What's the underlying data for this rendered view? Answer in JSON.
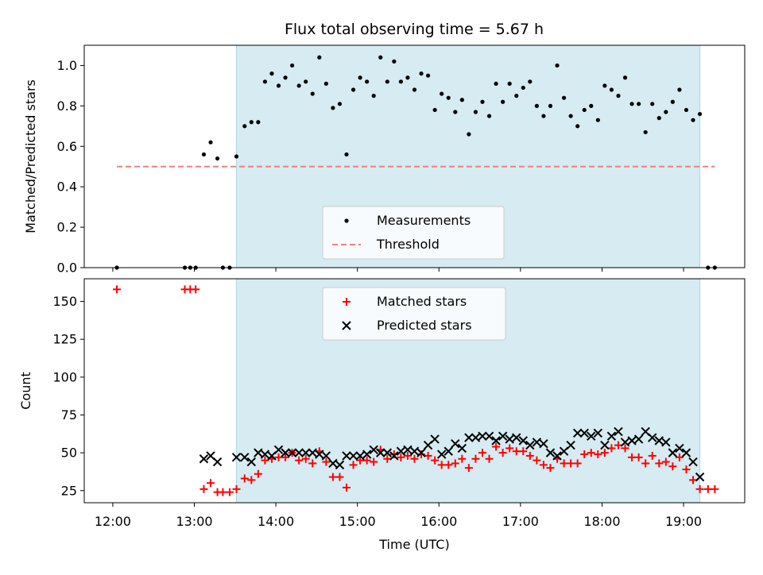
{
  "title": "Flux total observing time = 5.67 h",
  "colors": {
    "shade": "#add8e6",
    "threshold": "#f08080",
    "measurement": "#000000",
    "matched": "#ff0000",
    "predicted": "#000000"
  },
  "chart_data": [
    {
      "type": "scatter",
      "panel": "top",
      "ylabel": "Matched/Predicted stars",
      "ylim": [
        0,
        1.1
      ],
      "yticks": [
        0,
        0.2,
        0.4,
        0.6,
        0.8,
        1.0
      ],
      "ytick_labels": [
        "0.0",
        "0.2",
        "0.4",
        "0.6",
        "0.8",
        "1.0"
      ],
      "xlim": [
        "11:39",
        "19:45"
      ],
      "shaded_interval": [
        "13:31",
        "19:12"
      ],
      "legend": {
        "placement": "bottom-center",
        "entries": [
          "Measurements",
          "Threshold"
        ]
      },
      "threshold": {
        "name": "Threshold",
        "value": 0.5,
        "x_start": "12:03",
        "x_end": "19:23"
      },
      "series": [
        {
          "name": "Measurements",
          "marker": "dot",
          "points": [
            [
              "12:03",
              0.0
            ],
            [
              "12:53",
              0.0
            ],
            [
              "12:57",
              0.0
            ],
            [
              "13:01",
              0.0
            ],
            [
              "13:07",
              0.56
            ],
            [
              "13:12",
              0.62
            ],
            [
              "13:17",
              0.54
            ],
            [
              "13:21",
              0.0
            ],
            [
              "13:26",
              0.0
            ],
            [
              "13:31",
              0.55
            ],
            [
              "13:37",
              0.7
            ],
            [
              "13:42",
              0.72
            ],
            [
              "13:47",
              0.72
            ],
            [
              "13:52",
              0.92
            ],
            [
              "13:57",
              0.96
            ],
            [
              "14:02",
              0.9
            ],
            [
              "14:07",
              0.94
            ],
            [
              "14:12",
              1.0
            ],
            [
              "14:17",
              0.9
            ],
            [
              "14:22",
              0.92
            ],
            [
              "14:27",
              0.86
            ],
            [
              "14:32",
              1.04
            ],
            [
              "14:37",
              0.91
            ],
            [
              "14:42",
              0.79
            ],
            [
              "14:47",
              0.81
            ],
            [
              "14:52",
              0.56
            ],
            [
              "14:57",
              0.88
            ],
            [
              "15:02",
              0.94
            ],
            [
              "15:07",
              0.92
            ],
            [
              "15:12",
              0.85
            ],
            [
              "15:17",
              1.04
            ],
            [
              "15:22",
              0.92
            ],
            [
              "15:27",
              1.02
            ],
            [
              "15:32",
              0.92
            ],
            [
              "15:37",
              0.94
            ],
            [
              "15:42",
              0.88
            ],
            [
              "15:47",
              0.96
            ],
            [
              "15:52",
              0.95
            ],
            [
              "15:57",
              0.78
            ],
            [
              "16:02",
              0.86
            ],
            [
              "16:07",
              0.84
            ],
            [
              "16:12",
              0.77
            ],
            [
              "16:17",
              0.83
            ],
            [
              "16:22",
              0.66
            ],
            [
              "16:27",
              0.77
            ],
            [
              "16:32",
              0.82
            ],
            [
              "16:37",
              0.75
            ],
            [
              "16:42",
              0.91
            ],
            [
              "16:47",
              0.82
            ],
            [
              "16:52",
              0.91
            ],
            [
              "16:57",
              0.85
            ],
            [
              "17:02",
              0.89
            ],
            [
              "17:07",
              0.92
            ],
            [
              "17:12",
              0.8
            ],
            [
              "17:17",
              0.75
            ],
            [
              "17:22",
              0.8
            ],
            [
              "17:27",
              1.0
            ],
            [
              "17:32",
              0.84
            ],
            [
              "17:37",
              0.75
            ],
            [
              "17:42",
              0.7
            ],
            [
              "17:47",
              0.78
            ],
            [
              "17:52",
              0.8
            ],
            [
              "17:57",
              0.73
            ],
            [
              "18:02",
              0.9
            ],
            [
              "18:07",
              0.88
            ],
            [
              "18:12",
              0.85
            ],
            [
              "18:17",
              0.94
            ],
            [
              "18:22",
              0.81
            ],
            [
              "18:27",
              0.81
            ],
            [
              "18:32",
              0.67
            ],
            [
              "18:37",
              0.81
            ],
            [
              "18:42",
              0.74
            ],
            [
              "18:47",
              0.77
            ],
            [
              "18:52",
              0.82
            ],
            [
              "18:57",
              0.88
            ],
            [
              "19:02",
              0.78
            ],
            [
              "19:07",
              0.73
            ],
            [
              "19:12",
              0.76
            ],
            [
              "19:18",
              0.0
            ],
            [
              "19:23",
              0.0
            ]
          ]
        }
      ]
    },
    {
      "type": "scatter",
      "panel": "bottom",
      "xlabel": "Time (UTC)",
      "ylabel": "Count",
      "ylim": [
        17,
        165
      ],
      "yticks": [
        25,
        50,
        75,
        100,
        125,
        150
      ],
      "ytick_labels": [
        "25",
        "50",
        "75",
        "100",
        "125",
        "150"
      ],
      "xlim": [
        "11:39",
        "19:45"
      ],
      "xticks": [
        "12:00",
        "13:00",
        "14:00",
        "15:00",
        "16:00",
        "17:00",
        "18:00",
        "19:00"
      ],
      "xtick_labels": [
        "12:00",
        "13:00",
        "14:00",
        "15:00",
        "16:00",
        "17:00",
        "18:00",
        "19:00"
      ],
      "shaded_interval": [
        "13:31",
        "19:12"
      ],
      "legend": {
        "placement": "top-center",
        "entries": [
          "Matched stars",
          "Predicted stars"
        ]
      },
      "series": [
        {
          "name": "Matched stars",
          "marker": "plus",
          "points": [
            [
              "12:03",
              158
            ],
            [
              "12:53",
              158
            ],
            [
              "12:57",
              158
            ],
            [
              "13:01",
              158
            ],
            [
              "13:07",
              26
            ],
            [
              "13:12",
              30
            ],
            [
              "13:17",
              24
            ],
            [
              "13:21",
              24
            ],
            [
              "13:26",
              24
            ],
            [
              "13:31",
              26
            ],
            [
              "13:37",
              33
            ],
            [
              "13:42",
              32
            ],
            [
              "13:47",
              36
            ],
            [
              "13:52",
              45
            ],
            [
              "13:57",
              46
            ],
            [
              "14:02",
              47
            ],
            [
              "14:07",
              47
            ],
            [
              "14:12",
              50
            ],
            [
              "14:17",
              45
            ],
            [
              "14:22",
              46
            ],
            [
              "14:27",
              43
            ],
            [
              "14:32",
              51
            ],
            [
              "14:37",
              44
            ],
            [
              "14:42",
              34
            ],
            [
              "14:47",
              34
            ],
            [
              "14:52",
              27
            ],
            [
              "14:57",
              42
            ],
            [
              "15:02",
              45
            ],
            [
              "15:07",
              45
            ],
            [
              "15:12",
              44
            ],
            [
              "15:17",
              52
            ],
            [
              "15:22",
              46
            ],
            [
              "15:27",
              49
            ],
            [
              "15:32",
              47
            ],
            [
              "15:37",
              48
            ],
            [
              "15:42",
              46
            ],
            [
              "15:47",
              49
            ],
            [
              "15:52",
              48
            ],
            [
              "15:57",
              45
            ],
            [
              "16:02",
              42
            ],
            [
              "16:07",
              42
            ],
            [
              "16:12",
              43
            ],
            [
              "16:17",
              46
            ],
            [
              "16:22",
              40
            ],
            [
              "16:27",
              46
            ],
            [
              "16:32",
              50
            ],
            [
              "16:37",
              46
            ],
            [
              "16:42",
              54
            ],
            [
              "16:47",
              50
            ],
            [
              "16:52",
              53
            ],
            [
              "16:57",
              51
            ],
            [
              "17:02",
              51
            ],
            [
              "17:07",
              48
            ],
            [
              "17:12",
              45
            ],
            [
              "17:17",
              42
            ],
            [
              "17:22",
              40
            ],
            [
              "17:27",
              46
            ],
            [
              "17:32",
              43
            ],
            [
              "17:37",
              43
            ],
            [
              "17:42",
              43
            ],
            [
              "17:47",
              49
            ],
            [
              "17:52",
              50
            ],
            [
              "17:57",
              49
            ],
            [
              "18:02",
              50
            ],
            [
              "18:07",
              53
            ],
            [
              "18:12",
              55
            ],
            [
              "18:17",
              53
            ],
            [
              "18:22",
              47
            ],
            [
              "18:27",
              47
            ],
            [
              "18:32",
              43
            ],
            [
              "18:37",
              48
            ],
            [
              "18:42",
              43
            ],
            [
              "18:47",
              44
            ],
            [
              "18:52",
              41
            ],
            [
              "18:57",
              47
            ],
            [
              "19:02",
              39
            ],
            [
              "19:07",
              32
            ],
            [
              "19:12",
              26
            ],
            [
              "19:18",
              26
            ],
            [
              "19:23",
              26
            ]
          ]
        },
        {
          "name": "Predicted stars",
          "marker": "x",
          "points": [
            [
              "13:07",
              46
            ],
            [
              "13:12",
              48
            ],
            [
              "13:17",
              44
            ],
            [
              "13:31",
              47
            ],
            [
              "13:37",
              47
            ],
            [
              "13:42",
              44
            ],
            [
              "13:47",
              50
            ],
            [
              "13:52",
              49
            ],
            [
              "13:57",
              48
            ],
            [
              "14:02",
              52
            ],
            [
              "14:07",
              50
            ],
            [
              "14:12",
              50
            ],
            [
              "14:17",
              50
            ],
            [
              "14:22",
              50
            ],
            [
              "14:27",
              50
            ],
            [
              "14:32",
              49
            ],
            [
              "14:37",
              48
            ],
            [
              "14:42",
              43
            ],
            [
              "14:47",
              42
            ],
            [
              "14:52",
              48
            ],
            [
              "14:57",
              48
            ],
            [
              "15:02",
              48
            ],
            [
              "15:07",
              49
            ],
            [
              "15:12",
              52
            ],
            [
              "15:17",
              50
            ],
            [
              "15:22",
              50
            ],
            [
              "15:27",
              48
            ],
            [
              "15:32",
              51
            ],
            [
              "15:37",
              52
            ],
            [
              "15:42",
              51
            ],
            [
              "15:47",
              50
            ],
            [
              "15:52",
              55
            ],
            [
              "15:57",
              59
            ],
            [
              "16:02",
              49
            ],
            [
              "16:07",
              51
            ],
            [
              "16:12",
              56
            ],
            [
              "16:17",
              53
            ],
            [
              "16:22",
              60
            ],
            [
              "16:27",
              60
            ],
            [
              "16:32",
              61
            ],
            [
              "16:37",
              61
            ],
            [
              "16:42",
              58
            ],
            [
              "16:47",
              61
            ],
            [
              "16:52",
              59
            ],
            [
              "16:57",
              60
            ],
            [
              "17:02",
              58
            ],
            [
              "17:07",
              55
            ],
            [
              "17:12",
              57
            ],
            [
              "17:17",
              56
            ],
            [
              "17:22",
              50
            ],
            [
              "17:27",
              48
            ],
            [
              "17:32",
              51
            ],
            [
              "17:37",
              55
            ],
            [
              "17:42",
              63
            ],
            [
              "17:47",
              63
            ],
            [
              "17:52",
              61
            ],
            [
              "17:57",
              63
            ],
            [
              "18:02",
              55
            ],
            [
              "18:07",
              61
            ],
            [
              "18:12",
              64
            ],
            [
              "18:17",
              57
            ],
            [
              "18:22",
              58
            ],
            [
              "18:27",
              59
            ],
            [
              "18:32",
              64
            ],
            [
              "18:37",
              60
            ],
            [
              "18:42",
              58
            ],
            [
              "18:47",
              57
            ],
            [
              "18:52",
              50
            ],
            [
              "18:57",
              53
            ],
            [
              "19:02",
              50
            ],
            [
              "19:07",
              44
            ],
            [
              "19:12",
              34
            ]
          ]
        }
      ]
    }
  ]
}
